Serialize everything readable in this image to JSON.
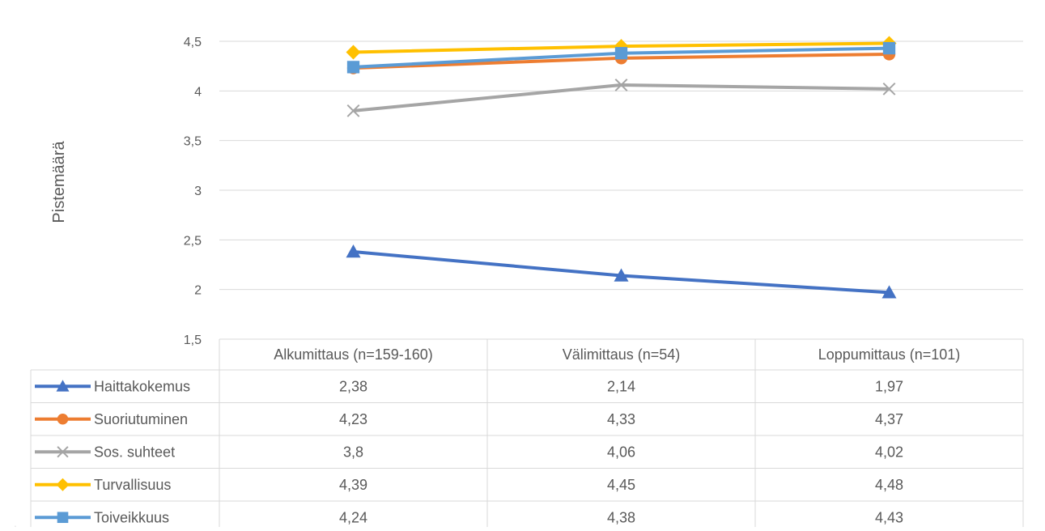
{
  "chart_data": {
    "type": "line",
    "title_fragment": "",
    "ylabel": "Pistemäärä",
    "ylim": [
      1.5,
      4.5
    ],
    "yticks": [
      "1,5",
      "2",
      "2,5",
      "3",
      "3,5",
      "4",
      "4,5"
    ],
    "ytick_values": [
      1.5,
      2,
      2.5,
      3,
      3.5,
      4,
      4.5
    ],
    "categories": [
      "Alkumittaus (n=159-160)",
      "Välimittaus (n=54)",
      "Loppumittaus (n=101)"
    ],
    "grid": true,
    "legend_placement": "data-table",
    "series": [
      {
        "name": "Haittakokemus",
        "values": [
          2.38,
          2.14,
          1.97
        ],
        "labels": [
          "2,38",
          "2,14",
          "1,97"
        ],
        "color": "#4472c4",
        "marker": "triangle"
      },
      {
        "name": "Suoriutuminen",
        "values": [
          4.23,
          4.33,
          4.37
        ],
        "labels": [
          "4,23",
          "4,33",
          "4,37"
        ],
        "color": "#ed7d31",
        "marker": "circle"
      },
      {
        "name": "Sos. suhteet",
        "values": [
          3.8,
          4.06,
          4.02
        ],
        "labels": [
          "3,8",
          "4,06",
          "4,02"
        ],
        "color": "#a5a5a5",
        "marker": "x"
      },
      {
        "name": "Turvallisuus",
        "values": [
          4.39,
          4.45,
          4.48
        ],
        "labels": [
          "4,39",
          "4,45",
          "4,48"
        ],
        "color": "#ffc000",
        "marker": "diamond"
      },
      {
        "name": "Toiveikkuus",
        "values": [
          4.24,
          4.38,
          4.43
        ],
        "labels": [
          "4,24",
          "4,38",
          "4,43"
        ],
        "color": "#5b9bd5",
        "marker": "square"
      }
    ]
  }
}
